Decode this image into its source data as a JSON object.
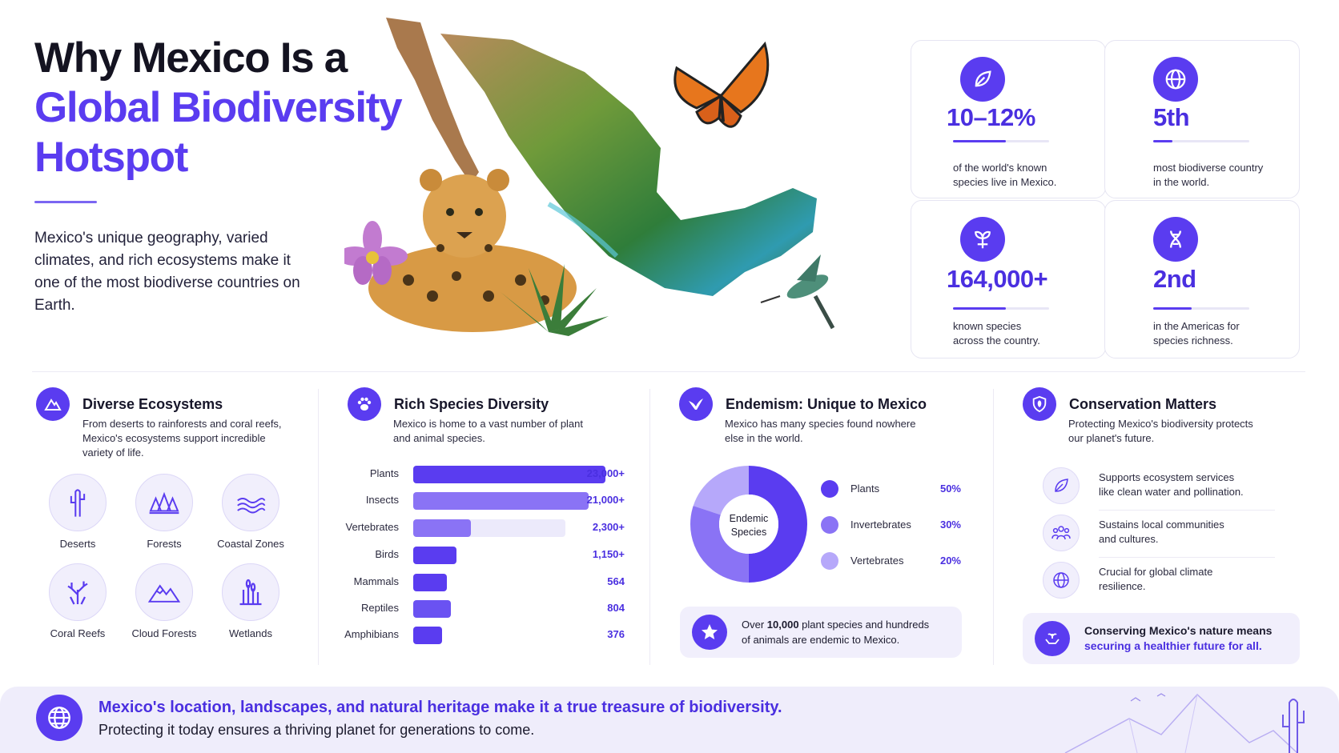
{
  "header": {
    "title_line1": "Why Mexico Is a",
    "title_line2": "Global Biodiversity",
    "title_line3": "Hotspot",
    "intro": "Mexico's unique geography, varied climates, and rich ecosystems make it one of the most biodiverse countries on Earth."
  },
  "stats": [
    {
      "value": "10–12%",
      "desc1": "of the world's known",
      "desc2": "species live in Mexico.",
      "icon": "leaf-icon",
      "fill": 0.55
    },
    {
      "value": "5th",
      "desc1": "most biodiverse country",
      "desc2": "in the world.",
      "icon": "globe-icon",
      "fill": 0.2
    },
    {
      "value": "164,000+",
      "desc1": "known species",
      "desc2": "across the country.",
      "icon": "sprout-icon",
      "fill": 0.55
    },
    {
      "value": "2nd",
      "desc1": "in the Americas for",
      "desc2": "species richness.",
      "icon": "dna-icon",
      "fill": 0.4
    }
  ],
  "ecosystems": {
    "title": "Diverse Ecosystems",
    "desc1": "From deserts to rainforests and coral reefs,",
    "desc2": "Mexico's ecosystems support incredible",
    "desc3": "variety of life.",
    "items": [
      {
        "label": "Deserts",
        "icon": "cactus-icon"
      },
      {
        "label": "Forests",
        "icon": "trees-icon"
      },
      {
        "label": "Coastal Zones",
        "icon": "waves-icon"
      },
      {
        "label": "Coral Reefs",
        "icon": "coral-icon"
      },
      {
        "label": "Cloud Forests",
        "icon": "mountain-icon"
      },
      {
        "label": "Wetlands",
        "icon": "reeds-icon"
      }
    ]
  },
  "species": {
    "title": "Rich Species Diversity",
    "desc1": "Mexico is home to a vast number of plant",
    "desc2": "and animal species."
  },
  "chart_data": {
    "type": "bar",
    "orientation": "horizontal",
    "categories": [
      "Plants",
      "Insects",
      "Vertebrates",
      "Birds",
      "Mammals",
      "Reptiles",
      "Amphibians"
    ],
    "values": [
      23000,
      21000,
      2300,
      1150,
      564,
      804,
      376
    ],
    "value_labels": [
      "23,000+",
      "21,000+",
      "2,300+",
      "1,150+",
      "564",
      "804",
      "376"
    ]
  },
  "endemism": {
    "title": "Endemism: Unique to Mexico",
    "desc1": "Mexico has many species found nowhere",
    "desc2": "else in the world.",
    "center1": "Endemic",
    "center2": "Species",
    "legend": [
      {
        "name": "Plants",
        "pct": "50%",
        "value": 50,
        "color": "#5a3cf0"
      },
      {
        "name": "Invertebrates",
        "pct": "30%",
        "value": 30,
        "color": "#8a73f5"
      },
      {
        "name": "Vertebrates",
        "pct": "20%",
        "value": 20,
        "color": "#b6a8fa"
      }
    ],
    "callout_pre": "Over ",
    "callout_bold": "10,000",
    "callout_post": " plant species and hundreds",
    "callout2": "of animals are endemic to Mexico."
  },
  "conservation": {
    "title": "Conservation Matters",
    "desc1": "Protecting Mexico's biodiversity protects",
    "desc2": "our planet's future.",
    "items": [
      {
        "l1": "Supports ecosystem services",
        "l2": "like clean water and pollination."
      },
      {
        "l1": "Sustains local communities",
        "l2": "and cultures."
      },
      {
        "l1": "Crucial for global climate",
        "l2": "resilience."
      }
    ],
    "callout1": "Conserving Mexico's nature means",
    "callout2": "securing a healthier future for all."
  },
  "footer": {
    "line1": "Mexico's location, landscapes, and natural heritage make it a true treasure of biodiversity.",
    "line2": "Protecting it today ensures a thriving planet for generations to come."
  },
  "colors": {
    "accent": "#5a3cf0",
    "accent_light": "#8a73f5",
    "accent_pale": "#efedfb"
  }
}
